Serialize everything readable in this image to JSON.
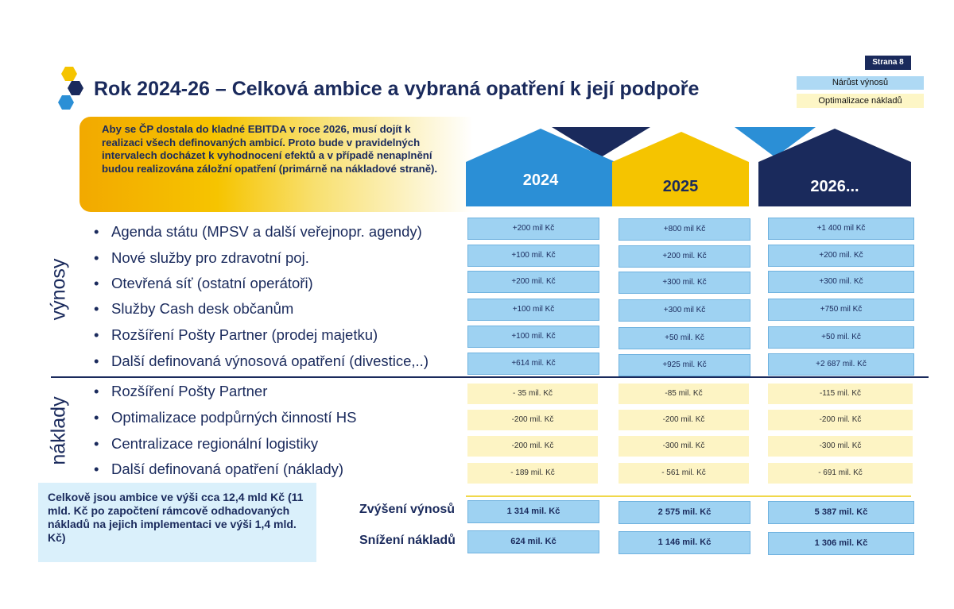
{
  "page_badge": "Strana 8",
  "legend": {
    "blue": "Nárůst výnosů",
    "yellow": "Optimalizace nákladů"
  },
  "title": "Rok 2024-26 – Celková ambice a vybraná opatření k její podpoře",
  "callout": "Aby se ČP dostala do kladné EBITDA v roce 2026, musí dojít k realizaci všech definovaných ambicí. Proto bude v pravidelných intervalech docházet k vyhodnocení efektů a v případě nenaplnění budou realizována záložní opatření (primárně na nákladové straně).",
  "years": [
    "2024",
    "2025",
    "2026..."
  ],
  "section_revenue": "výnosy",
  "section_costs": "náklady",
  "revenue_items": [
    {
      "label": "Agenda státu (MPSV a další veřejnopr. agendy)",
      "v2024": "+200 mil Kč",
      "v2025": "+800 mil Kč",
      "v2026": "+1 400 mil Kč"
    },
    {
      "label": "Nové služby pro zdravotní poj.",
      "v2024": "+100 mil. Kč",
      "v2025": "+200 mil. Kč",
      "v2026": "+200 mil. Kč"
    },
    {
      "label": "Otevřená síť (ostatní operátoři)",
      "v2024": "+200 mil. Kč",
      "v2025": "+300 mil. Kč",
      "v2026": "+300 mil. Kč"
    },
    {
      "label": "Služby Cash desk občanům",
      "v2024": "+100 mil Kč",
      "v2025": "+300 mil Kč",
      "v2026": "+750 mil Kč"
    },
    {
      "label": "Rozšíření Pošty Partner (prodej majetku)",
      "v2024": "+100  mil. Kč",
      "v2025": "+50 mil. Kč",
      "v2026": "+50 mil. Kč"
    },
    {
      "label": "Další definovaná výnosová opatření (divestice,..)",
      "v2024": "+614 mil. Kč",
      "v2025": "+925 mil. Kč",
      "v2026": "+2 687 mil. Kč"
    }
  ],
  "cost_items": [
    {
      "label": "Rozšíření Pošty Partner",
      "v2024": "- 35 mil. Kč",
      "v2025": "-85 mil. Kč",
      "v2026": "-115 mil. Kč"
    },
    {
      "label": "Optimalizace podpůrných činností HS",
      "v2024": "-200 mil. Kč",
      "v2025": "-200 mil. Kč",
      "v2026": "-200 mil. Kč"
    },
    {
      "label": "Centralizace regionální logistiky",
      "v2024": "-200 mil. Kč",
      "v2025": "-300 mil. Kč",
      "v2026": "-300 mil. Kč"
    },
    {
      "label": "Další definovaná opatření (náklady)",
      "v2024": "- 189 mil. Kč",
      "v2025": "- 561 mil. Kč",
      "v2026": "- 691 mil. Kč"
    }
  ],
  "totals": [
    {
      "label": "Zvýšení výnosů",
      "v2024": "1 314 mil. Kč",
      "v2025": "2 575 mil. Kč",
      "v2026": "5 387 mil. Kč"
    },
    {
      "label": "Snížení nákladů",
      "v2024": "624 mil. Kč",
      "v2025": "1 146 mil. Kč",
      "v2026": "1 306 mil. Kč"
    }
  ],
  "summary": "Celkově jsou ambice ve výši cca 12,4 mld Kč (11 mld. Kč po započtení rámcově odhadovaných nákladů na jejich implementaci ve výši 1,4 mld. Kč)",
  "colors": {
    "navy": "#1a2a5c",
    "blue": "#2b8fd6",
    "yellow": "#f5c400",
    "light_blue": "#9ed2f2",
    "light_yellow": "#fdf4c4"
  }
}
